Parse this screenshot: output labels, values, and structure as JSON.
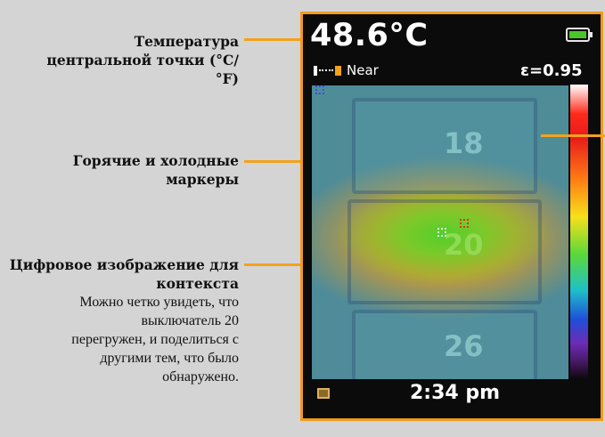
{
  "annotations": {
    "center_temp": {
      "title": "Температура центральной точки (°C/°F)"
    },
    "markers": {
      "title": "Горячие и холодные маркеры"
    },
    "context": {
      "title": "Цифровое изображение для контекста",
      "desc": "Можно четко увидеть, что выключатель 20 перегружен, и поделиться с другими тем, что было обнаружено."
    }
  },
  "display": {
    "center_temperature": "48.6°C",
    "focus_mode": "Near",
    "emissivity": "ε=0.95",
    "breaker_labels": [
      "18",
      "20",
      "26"
    ],
    "time": "2:34 pm",
    "battery_level": 1.0,
    "colors": {
      "frame": "#f29a1c",
      "hot_marker": "#e0301a",
      "cold_marker": "#3a4fe0",
      "battery": "#49c62b"
    },
    "icons": [
      "battery-icon",
      "focus-icon",
      "gallery-icon"
    ]
  }
}
